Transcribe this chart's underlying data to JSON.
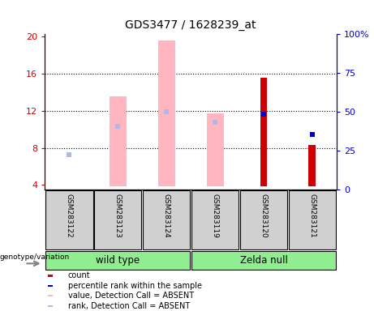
{
  "title": "GDS3477 / 1628239_at",
  "samples": [
    "GSM283122",
    "GSM283123",
    "GSM283124",
    "GSM283119",
    "GSM283120",
    "GSM283121"
  ],
  "group_labels": [
    "wild type",
    "Zelda null"
  ],
  "group_colors": [
    "#90ee90",
    "#00ee00"
  ],
  "ylim_left": [
    3.5,
    20.2
  ],
  "ylim_right": [
    0,
    100
  ],
  "yticks_left": [
    4,
    8,
    12,
    16,
    20
  ],
  "yticks_right": [
    0,
    25,
    50,
    75,
    100
  ],
  "yticklabels_right": [
    "0",
    "25",
    "50",
    "75",
    "100%"
  ],
  "left_color": "#cc0000",
  "right_color": "#0000cc",
  "absent_bar_color": "#ffb6c1",
  "absent_rank_color": "#b0b8e8",
  "count_values": [
    null,
    null,
    null,
    null,
    15.5,
    8.3
  ],
  "percentile_values": [
    null,
    null,
    null,
    null,
    11.6,
    9.4
  ],
  "absent_value_bars": [
    null,
    13.5,
    19.5,
    11.7,
    null,
    null
  ],
  "absent_rank_markers": [
    7.3,
    10.3,
    11.9,
    10.7,
    null,
    null
  ],
  "base": 3.85,
  "absent_bar_width": 0.35,
  "count_bar_width": 0.15,
  "grid_lines": [
    8,
    12,
    16
  ],
  "dotted_color": "black",
  "bg_color": "white",
  "sample_box_color": "#d0d0d0",
  "legend_items": [
    {
      "color": "#cc0000",
      "label": "count"
    },
    {
      "color": "#0000cc",
      "label": "percentile rank within the sample"
    },
    {
      "color": "#ffb6c1",
      "label": "value, Detection Call = ABSENT"
    },
    {
      "color": "#b0b8e8",
      "label": "rank, Detection Call = ABSENT"
    }
  ]
}
